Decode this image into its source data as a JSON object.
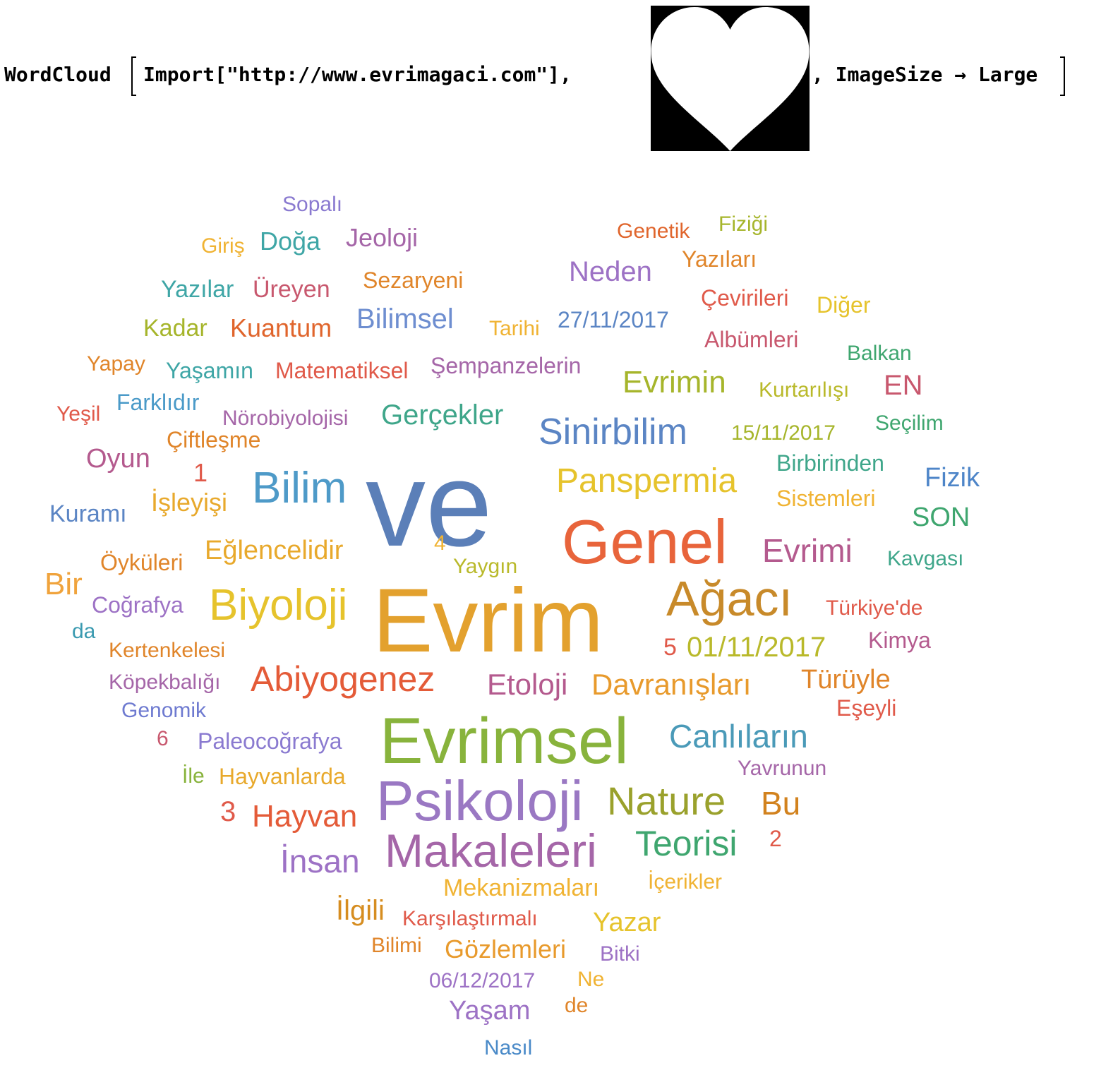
{
  "input": {
    "wordcloud_fn": "WordCloud",
    "import_expr": "Import[\"http://www.evrimagaci.com\"],",
    "option_expr": ", ImageSize → Large"
  },
  "mask_icon": "heart-mask-icon",
  "words": [
    {
      "text": "ve",
      "size": 170,
      "color": "#5b7fb8"
    },
    {
      "text": "Evrim",
      "size": 128,
      "color": "#e3a12e"
    },
    {
      "text": "Evrimsel",
      "size": 92,
      "color": "#88b33c"
    },
    {
      "text": "Genel",
      "size": 88,
      "color": "#e8643b"
    },
    {
      "text": "Psikoloji",
      "size": 80,
      "color": "#9a78c3"
    },
    {
      "text": "Ağacı",
      "size": 70,
      "color": "#c88a2a"
    },
    {
      "text": "Makaleleri",
      "size": 66,
      "color": "#a566a8"
    },
    {
      "text": "Bilim",
      "size": 62,
      "color": "#4e9ac8"
    },
    {
      "text": "Biyoloji",
      "size": 62,
      "color": "#e6c32c"
    },
    {
      "text": "Nature",
      "size": 56,
      "color": "#9aa12c"
    },
    {
      "text": "Sinirbilim",
      "size": 52,
      "color": "#5b85c4"
    },
    {
      "text": "Abiyogenez",
      "size": 50,
      "color": "#e45b38"
    },
    {
      "text": "Teorisi",
      "size": 50,
      "color": "#3fa66f"
    },
    {
      "text": "Panspermia",
      "size": 48,
      "color": "#e6c32c"
    },
    {
      "text": "Canlıların",
      "size": 46,
      "color": "#4a9ab8"
    },
    {
      "text": "Bu",
      "size": 46,
      "color": "#d2821e"
    },
    {
      "text": "İnsan",
      "size": 46,
      "color": "#9d72c5"
    },
    {
      "text": "Evrimi",
      "size": 46,
      "color": "#b45a8e"
    },
    {
      "text": "Hayvan",
      "size": 44,
      "color": "#e45b38"
    },
    {
      "text": "Evrimin",
      "size": 44,
      "color": "#a6b52b"
    },
    {
      "text": "Bir",
      "size": 44,
      "color": "#f0a33c"
    },
    {
      "text": "Etoloji",
      "size": 42,
      "color": "#b45a8e"
    },
    {
      "text": "Davranışları",
      "size": 42,
      "color": "#e89a2c"
    },
    {
      "text": "Gerçekler",
      "size": 40,
      "color": "#3fa68a"
    },
    {
      "text": "01/11/2017",
      "size": 40,
      "color": "#b9b92a"
    },
    {
      "text": "İlgili",
      "size": 40,
      "color": "#d68d20"
    },
    {
      "text": "Neden",
      "size": 40,
      "color": "#9d72c5"
    },
    {
      "text": "Oyun",
      "size": 38,
      "color": "#b45a8e"
    },
    {
      "text": "Eğlencelidir",
      "size": 38,
      "color": "#e8a92c"
    },
    {
      "text": "Türüyle",
      "size": 38,
      "color": "#e0852a"
    },
    {
      "text": "Bilimsel",
      "size": 40,
      "color": "#6e8ed0"
    },
    {
      "text": "Gözlemleri",
      "size": 36,
      "color": "#e89a2c"
    },
    {
      "text": "Fizik",
      "size": 38,
      "color": "#4e85c8"
    },
    {
      "text": "SON",
      "size": 38,
      "color": "#3fa66f"
    },
    {
      "text": "EN",
      "size": 40,
      "color": "#c8586e"
    },
    {
      "text": "Mekanizmaları",
      "size": 34,
      "color": "#f0b333"
    },
    {
      "text": "Yaşam",
      "size": 38,
      "color": "#9d72c5"
    },
    {
      "text": "Yazar",
      "size": 38,
      "color": "#e6c32c"
    },
    {
      "text": "İşleyişi",
      "size": 36,
      "color": "#e8a92c"
    },
    {
      "text": "Kuantum",
      "size": 36,
      "color": "#e0652c"
    },
    {
      "text": "Jeoloji",
      "size": 36,
      "color": "#a566a8"
    },
    {
      "text": "Doğa",
      "size": 36,
      "color": "#3fa6a6"
    },
    {
      "text": "3",
      "size": 40,
      "color": "#e05a4a"
    },
    {
      "text": "Kuramı",
      "size": 34,
      "color": "#5b85c4"
    },
    {
      "text": "Paleocoğrafya",
      "size": 32,
      "color": "#8a7ad0"
    },
    {
      "text": "Hayvanlarda",
      "size": 32,
      "color": "#e8a92c"
    },
    {
      "text": "Kadar",
      "size": 34,
      "color": "#a6b52b"
    },
    {
      "text": "Coğrafya",
      "size": 32,
      "color": "#9d72c5"
    },
    {
      "text": "Öyküleri",
      "size": 32,
      "color": "#e0852a"
    },
    {
      "text": "Çiftleşme",
      "size": 32,
      "color": "#e0852a"
    },
    {
      "text": "Yazılar",
      "size": 34,
      "color": "#3fa6a6"
    },
    {
      "text": "Üreyen",
      "size": 34,
      "color": "#c8586e"
    },
    {
      "text": "Matematiksel",
      "size": 32,
      "color": "#e05a4a"
    },
    {
      "text": "Şempanzelerin",
      "size": 32,
      "color": "#a566a8"
    },
    {
      "text": "Yaşamın",
      "size": 32,
      "color": "#3fa6a6"
    },
    {
      "text": "Farklıdır",
      "size": 32,
      "color": "#4a9ac8"
    },
    {
      "text": "Nörobiyolojisi",
      "size": 30,
      "color": "#a566a8"
    },
    {
      "text": "Birbirinden",
      "size": 32,
      "color": "#3fa68a"
    },
    {
      "text": "Sistemleri",
      "size": 32,
      "color": "#f0b333"
    },
    {
      "text": "Albümleri",
      "size": 32,
      "color": "#c8586e"
    },
    {
      "text": "Yazıları",
      "size": 32,
      "color": "#e0852a"
    },
    {
      "text": "Çevirileri",
      "size": 32,
      "color": "#e05a4a"
    },
    {
      "text": "Sezaryeni",
      "size": 32,
      "color": "#e0852a"
    },
    {
      "text": "Karşılaştırmalı",
      "size": 30,
      "color": "#e05a4a"
    },
    {
      "text": "Köpekbalığı",
      "size": 30,
      "color": "#a566a8"
    },
    {
      "text": "Kertenkelesi",
      "size": 30,
      "color": "#e0852a"
    },
    {
      "text": "Yavrunun",
      "size": 30,
      "color": "#a566a8"
    },
    {
      "text": "Türkiye'de",
      "size": 30,
      "color": "#e05a4a"
    },
    {
      "text": "Kimya",
      "size": 32,
      "color": "#b45a8e"
    },
    {
      "text": "Eşeyli",
      "size": 32,
      "color": "#e05a4a"
    },
    {
      "text": "Kurtarılışı",
      "size": 30,
      "color": "#b9b92a"
    },
    {
      "text": "15/11/2017",
      "size": 30,
      "color": "#a6b52b"
    },
    {
      "text": "Seçilim",
      "size": 30,
      "color": "#3fa66f"
    },
    {
      "text": "Kavgası",
      "size": 30,
      "color": "#3fa68a"
    },
    {
      "text": "27/11/2017",
      "size": 32,
      "color": "#5b85c4"
    },
    {
      "text": "06/12/2017",
      "size": 30,
      "color": "#9d72c5"
    },
    {
      "text": "Diğer",
      "size": 32,
      "color": "#e6c32c"
    },
    {
      "text": "Genomik",
      "size": 30,
      "color": "#6e7ad0"
    },
    {
      "text": "Tarihi",
      "size": 30,
      "color": "#f0b333"
    },
    {
      "text": "Balkan",
      "size": 30,
      "color": "#3fa66f"
    },
    {
      "text": "Genetik",
      "size": 30,
      "color": "#e0652c"
    },
    {
      "text": "Fiziği",
      "size": 30,
      "color": "#a6b52b"
    },
    {
      "text": "Giriş",
      "size": 30,
      "color": "#f0b333"
    },
    {
      "text": "Sopalı",
      "size": 30,
      "color": "#8a7ad0"
    },
    {
      "text": "Yapay",
      "size": 30,
      "color": "#e0852a"
    },
    {
      "text": "Yeşil",
      "size": 30,
      "color": "#e05a4a"
    },
    {
      "text": "Bilimi",
      "size": 30,
      "color": "#e0852a"
    },
    {
      "text": "Bitki",
      "size": 30,
      "color": "#9d72c5"
    },
    {
      "text": "İçerikler",
      "size": 30,
      "color": "#f0b333"
    },
    {
      "text": "Yaygın",
      "size": 30,
      "color": "#b9b92a"
    },
    {
      "text": "İle",
      "size": 30,
      "color": "#88b33c"
    },
    {
      "text": "Nasıl",
      "size": 30,
      "color": "#4a8ac8"
    },
    {
      "text": "Ne",
      "size": 30,
      "color": "#f0b333"
    },
    {
      "text": "de",
      "size": 30,
      "color": "#e0852a"
    },
    {
      "text": "da",
      "size": 30,
      "color": "#3a9ab0"
    },
    {
      "text": "1",
      "size": 36,
      "color": "#e05a4a"
    },
    {
      "text": "2",
      "size": 32,
      "color": "#e05a4a"
    },
    {
      "text": "4",
      "size": 30,
      "color": "#f0b333"
    },
    {
      "text": "5",
      "size": 34,
      "color": "#e05a4a"
    },
    {
      "text": "6",
      "size": 30,
      "color": "#c8586e"
    }
  ]
}
